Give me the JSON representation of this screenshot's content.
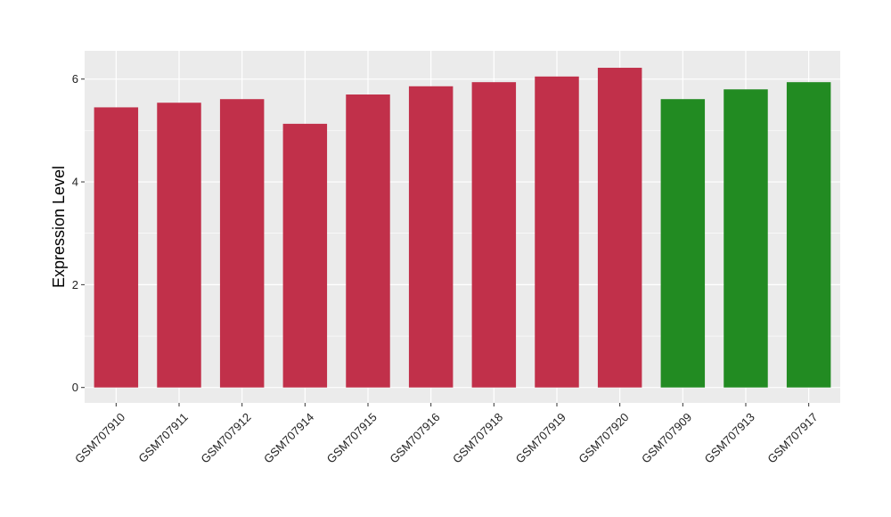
{
  "chart_data": {
    "type": "bar",
    "title": "",
    "xlabel": "",
    "ylabel": "Expression Level",
    "categories": [
      "GSM707910",
      "GSM707911",
      "GSM707912",
      "GSM707914",
      "GSM707915",
      "GSM707916",
      "GSM707918",
      "GSM707919",
      "GSM707920",
      "GSM707909",
      "GSM707913",
      "GSM707917"
    ],
    "values": [
      5.45,
      5.54,
      5.61,
      5.13,
      5.7,
      5.86,
      5.94,
      6.05,
      6.22,
      5.61,
      5.8,
      5.94
    ],
    "bar_colors": [
      "#C1304A",
      "#C1304A",
      "#C1304A",
      "#C1304A",
      "#C1304A",
      "#C1304A",
      "#C1304A",
      "#C1304A",
      "#C1304A",
      "#228B22",
      "#228B22",
      "#228B22"
    ],
    "ylim": [
      -0.3,
      6.55
    ],
    "yticks": [
      0,
      2,
      4,
      6
    ],
    "ytick_labels": [
      "0",
      "2",
      "4",
      "6"
    ],
    "grid": true,
    "panel_background": "#EBEBEB",
    "grid_color": "#FFFFFF",
    "legend": "none"
  }
}
